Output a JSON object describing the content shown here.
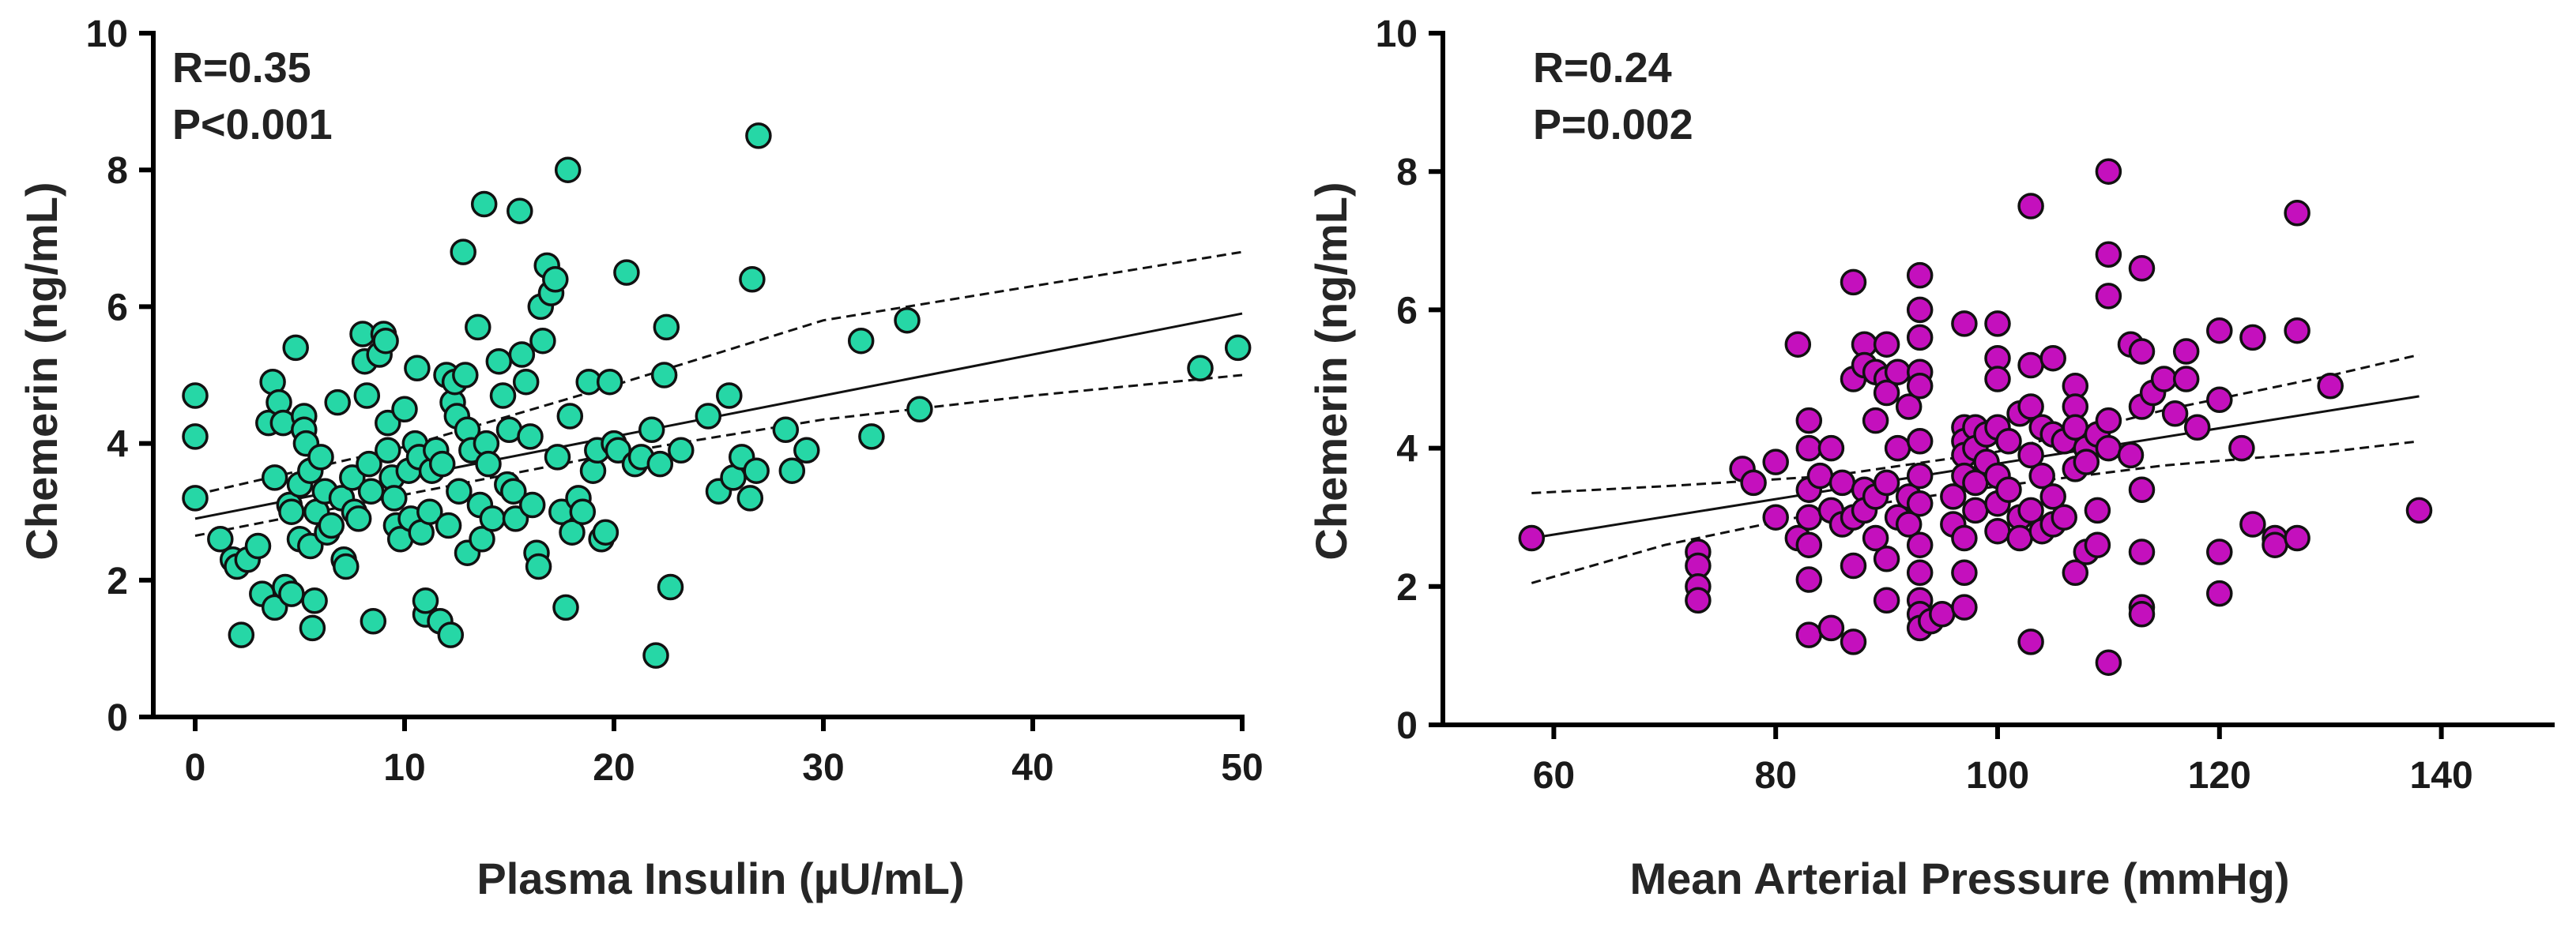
{
  "chart_data": [
    {
      "type": "scatter",
      "xlabel": "Plasma Insulin (µU/mL)",
      "ylabel": "Chemerin  (ng/mL)",
      "xlim": [
        -2,
        50
      ],
      "ylim": [
        0,
        10
      ],
      "xticks": [
        "0",
        "10",
        "20",
        "30",
        "40",
        "50"
      ],
      "xtick_values": [
        0,
        10,
        20,
        30,
        40,
        50
      ],
      "yticks": [
        "0",
        "2",
        "4",
        "6",
        "8",
        "10"
      ],
      "ytick_values": [
        0,
        2,
        4,
        6,
        8,
        10
      ],
      "stats": [
        "R=0.35",
        "P<0.001"
      ],
      "color": "#26d7a6",
      "fit": {
        "x": [
          0,
          50
        ],
        "y": [
          2.9,
          5.9
        ]
      },
      "ci_upper": [
        [
          0,
          3.25
        ],
        [
          10,
          3.95
        ],
        [
          20,
          4.85
        ],
        [
          30,
          5.8
        ],
        [
          40,
          6.3
        ],
        [
          50,
          6.8
        ]
      ],
      "ci_lower": [
        [
          0,
          2.65
        ],
        [
          10,
          3.25
        ],
        [
          20,
          3.85
        ],
        [
          30,
          4.35
        ],
        [
          40,
          4.7
        ],
        [
          50,
          5.0
        ]
      ],
      "points": [
        [
          0,
          4.7
        ],
        [
          0,
          4.1
        ],
        [
          0,
          3.2
        ],
        [
          1.2,
          2.6
        ],
        [
          1.8,
          2.3
        ],
        [
          2,
          2.2
        ],
        [
          2.2,
          1.2
        ],
        [
          2.5,
          2.3
        ],
        [
          3,
          2.5
        ],
        [
          3.2,
          1.8
        ],
        [
          3.5,
          4.3
        ],
        [
          3.7,
          4.9
        ],
        [
          3.8,
          3.5
        ],
        [
          3.8,
          1.6
        ],
        [
          4,
          4.6
        ],
        [
          4.2,
          4.3
        ],
        [
          4.3,
          1.9
        ],
        [
          4.5,
          3.1
        ],
        [
          4.6,
          3.0
        ],
        [
          4.6,
          1.8
        ],
        [
          4.8,
          5.4
        ],
        [
          5,
          3.4
        ],
        [
          5,
          2.6
        ],
        [
          5.2,
          4.4
        ],
        [
          5.2,
          4.2
        ],
        [
          5.3,
          4.0
        ],
        [
          5.5,
          3.6
        ],
        [
          5.5,
          2.5
        ],
        [
          5.6,
          1.3
        ],
        [
          5.7,
          1.7
        ],
        [
          5.8,
          3.0
        ],
        [
          6,
          3.8
        ],
        [
          6.2,
          3.3
        ],
        [
          6.3,
          2.7
        ],
        [
          6.5,
          2.8
        ],
        [
          6.8,
          4.6
        ],
        [
          7,
          3.2
        ],
        [
          7.1,
          2.3
        ],
        [
          7.2,
          2.2
        ],
        [
          7.5,
          3.5
        ],
        [
          7.6,
          3.0
        ],
        [
          7.8,
          2.9
        ],
        [
          8,
          5.6
        ],
        [
          8.1,
          5.2
        ],
        [
          8.2,
          4.7
        ],
        [
          8.3,
          3.7
        ],
        [
          8.4,
          3.3
        ],
        [
          8.5,
          1.4
        ],
        [
          8.8,
          5.3
        ],
        [
          9,
          5.6
        ],
        [
          9.1,
          5.5
        ],
        [
          9.2,
          4.3
        ],
        [
          9.2,
          3.9
        ],
        [
          9.4,
          3.5
        ],
        [
          9.5,
          3.2
        ],
        [
          9.6,
          2.8
        ],
        [
          9.8,
          2.6
        ],
        [
          10,
          4.5
        ],
        [
          10.2,
          3.6
        ],
        [
          10.3,
          2.9
        ],
        [
          10.5,
          4.0
        ],
        [
          10.6,
          5.1
        ],
        [
          10.7,
          3.8
        ],
        [
          10.8,
          2.7
        ],
        [
          11,
          1.5
        ],
        [
          11,
          1.7
        ],
        [
          11.2,
          3.0
        ],
        [
          11.3,
          3.6
        ],
        [
          11.5,
          3.9
        ],
        [
          11.7,
          1.4
        ],
        [
          11.8,
          3.7
        ],
        [
          12,
          5.0
        ],
        [
          12.1,
          2.8
        ],
        [
          12.2,
          1.2
        ],
        [
          12.3,
          4.6
        ],
        [
          12.4,
          4.9
        ],
        [
          12.5,
          4.4
        ],
        [
          12.6,
          3.3
        ],
        [
          12.8,
          6.8
        ],
        [
          12.9,
          5.0
        ],
        [
          13,
          4.2
        ],
        [
          13,
          2.4
        ],
        [
          13.2,
          3.9
        ],
        [
          13.5,
          5.7
        ],
        [
          13.6,
          3.1
        ],
        [
          13.7,
          2.6
        ],
        [
          13.8,
          7.5
        ],
        [
          13.9,
          4.0
        ],
        [
          14,
          3.7
        ],
        [
          14.2,
          2.9
        ],
        [
          14.5,
          5.2
        ],
        [
          14.7,
          4.7
        ],
        [
          14.9,
          3.4
        ],
        [
          15,
          4.2
        ],
        [
          15.2,
          3.3
        ],
        [
          15.3,
          2.9
        ],
        [
          15.5,
          7.4
        ],
        [
          15.6,
          5.3
        ],
        [
          15.8,
          4.9
        ],
        [
          16,
          4.1
        ],
        [
          16.1,
          3.1
        ],
        [
          16.3,
          2.4
        ],
        [
          16.4,
          2.2
        ],
        [
          16.5,
          6.0
        ],
        [
          16.6,
          5.5
        ],
        [
          16.8,
          6.6
        ],
        [
          17,
          6.2
        ],
        [
          17.2,
          6.4
        ],
        [
          17.3,
          3.8
        ],
        [
          17.5,
          3.0
        ],
        [
          17.7,
          1.6
        ],
        [
          17.8,
          8.0
        ],
        [
          17.9,
          4.4
        ],
        [
          18,
          2.7
        ],
        [
          18.3,
          3.2
        ],
        [
          18.5,
          3.0
        ],
        [
          18.8,
          4.9
        ],
        [
          19,
          3.6
        ],
        [
          19.2,
          3.9
        ],
        [
          19.4,
          2.6
        ],
        [
          19.6,
          2.7
        ],
        [
          19.8,
          4.9
        ],
        [
          20,
          4.0
        ],
        [
          20.2,
          3.9
        ],
        [
          20.6,
          6.5
        ],
        [
          21,
          3.7
        ],
        [
          21.3,
          3.8
        ],
        [
          21.8,
          4.2
        ],
        [
          22,
          0.9
        ],
        [
          22.2,
          3.7
        ],
        [
          22.4,
          5.0
        ],
        [
          22.5,
          5.7
        ],
        [
          22.7,
          1.9
        ],
        [
          23.2,
          3.9
        ],
        [
          24.5,
          4.4
        ],
        [
          25,
          3.3
        ],
        [
          25.5,
          4.7
        ],
        [
          25.7,
          3.5
        ],
        [
          26.1,
          3.8
        ],
        [
          26.5,
          3.2
        ],
        [
          26.6,
          6.4
        ],
        [
          26.8,
          3.6
        ],
        [
          26.9,
          8.5
        ],
        [
          28.2,
          4.2
        ],
        [
          28.5,
          3.6
        ],
        [
          29.2,
          3.9
        ],
        [
          31.8,
          5.5
        ],
        [
          32.3,
          4.1
        ],
        [
          34,
          5.8
        ],
        [
          34.6,
          4.5
        ],
        [
          48,
          5.1
        ],
        [
          49.8,
          5.4
        ]
      ]
    },
    {
      "type": "scatter",
      "xlabel": "Mean  Arterial Pressure (mmHg)",
      "ylabel": "Chemerin  (ng/mL)",
      "xlim": [
        50,
        150
      ],
      "ylim": [
        0,
        10
      ],
      "xticks": [
        "60",
        "80",
        "100",
        "120",
        "140"
      ],
      "xtick_values": [
        60,
        80,
        100,
        120,
        140
      ],
      "yticks": [
        "0",
        "2",
        "4",
        "6",
        "8",
        "10"
      ],
      "ytick_values": [
        0,
        2,
        4,
        6,
        8,
        10
      ],
      "stats": [
        "R=0.24",
        "P=0.002"
      ],
      "color": "#c410bd",
      "fit": {
        "x": [
          58,
          138
        ],
        "y": [
          2.7,
          4.75
        ]
      },
      "ci_upper": [
        [
          58,
          3.35
        ],
        [
          70,
          3.45
        ],
        [
          85,
          3.6
        ],
        [
          100,
          3.95
        ],
        [
          115,
          4.55
        ],
        [
          130,
          5.05
        ],
        [
          138,
          5.35
        ]
      ],
      "ci_lower": [
        [
          58,
          2.05
        ],
        [
          70,
          2.6
        ],
        [
          85,
          3.1
        ],
        [
          100,
          3.45
        ],
        [
          115,
          3.75
        ],
        [
          130,
          3.95
        ],
        [
          138,
          4.1
        ]
      ],
      "points": [
        [
          58,
          2.7
        ],
        [
          73,
          2.5
        ],
        [
          73,
          2.3
        ],
        [
          73,
          2.0
        ],
        [
          73,
          1.8
        ],
        [
          77,
          3.7
        ],
        [
          78,
          3.5
        ],
        [
          80,
          3.8
        ],
        [
          80,
          3.0
        ],
        [
          82,
          5.5
        ],
        [
          82,
          2.7
        ],
        [
          83,
          4.4
        ],
        [
          83,
          4.0
        ],
        [
          83,
          3.4
        ],
        [
          83,
          3.0
        ],
        [
          83,
          2.6
        ],
        [
          83,
          2.1
        ],
        [
          83,
          1.3
        ],
        [
          84,
          3.6
        ],
        [
          85,
          4.0
        ],
        [
          85,
          3.1
        ],
        [
          85,
          1.4
        ],
        [
          86,
          3.5
        ],
        [
          86,
          2.9
        ],
        [
          87,
          6.4
        ],
        [
          87,
          5.0
        ],
        [
          87,
          3.0
        ],
        [
          87,
          2.3
        ],
        [
          87,
          1.2
        ],
        [
          88,
          5.5
        ],
        [
          88,
          5.2
        ],
        [
          88,
          3.4
        ],
        [
          88,
          3.1
        ],
        [
          89,
          5.1
        ],
        [
          89,
          4.4
        ],
        [
          89,
          3.3
        ],
        [
          89,
          2.7
        ],
        [
          90,
          5.5
        ],
        [
          90,
          5.0
        ],
        [
          90,
          4.8
        ],
        [
          90,
          3.5
        ],
        [
          90,
          2.4
        ],
        [
          90,
          1.8
        ],
        [
          91,
          5.1
        ],
        [
          91,
          4.0
        ],
        [
          91,
          3.0
        ],
        [
          92,
          4.6
        ],
        [
          92,
          3.3
        ],
        [
          92,
          2.9
        ],
        [
          93,
          6.5
        ],
        [
          93,
          6.0
        ],
        [
          93,
          5.6
        ],
        [
          93,
          5.1
        ],
        [
          93,
          4.9
        ],
        [
          93,
          4.1
        ],
        [
          93,
          3.6
        ],
        [
          93,
          3.2
        ],
        [
          93,
          2.6
        ],
        [
          93,
          2.2
        ],
        [
          93,
          1.8
        ],
        [
          93,
          1.6
        ],
        [
          93,
          1.4
        ],
        [
          94,
          1.5
        ],
        [
          95,
          1.6
        ],
        [
          96,
          2.9
        ],
        [
          96,
          3.3
        ],
        [
          97,
          5.8
        ],
        [
          97,
          4.3
        ],
        [
          97,
          4.1
        ],
        [
          97,
          3.9
        ],
        [
          97,
          3.6
        ],
        [
          97,
          2.7
        ],
        [
          97,
          2.2
        ],
        [
          97,
          1.7
        ],
        [
          98,
          4.3
        ],
        [
          98,
          4.0
        ],
        [
          98,
          3.5
        ],
        [
          98,
          3.1
        ],
        [
          99,
          4.2
        ],
        [
          99,
          3.8
        ],
        [
          100,
          5.8
        ],
        [
          100,
          5.3
        ],
        [
          100,
          5.0
        ],
        [
          100,
          4.3
        ],
        [
          100,
          3.6
        ],
        [
          100,
          3.2
        ],
        [
          100,
          2.8
        ],
        [
          101,
          4.1
        ],
        [
          101,
          3.4
        ],
        [
          102,
          4.5
        ],
        [
          102,
          3.0
        ],
        [
          102,
          2.7
        ],
        [
          103,
          7.5
        ],
        [
          103,
          5.2
        ],
        [
          103,
          4.6
        ],
        [
          103,
          3.9
        ],
        [
          103,
          3.1
        ],
        [
          103,
          1.2
        ],
        [
          104,
          4.3
        ],
        [
          104,
          3.6
        ],
        [
          104,
          2.8
        ],
        [
          105,
          5.3
        ],
        [
          105,
          4.2
        ],
        [
          105,
          3.3
        ],
        [
          105,
          2.9
        ],
        [
          106,
          4.1
        ],
        [
          106,
          3.0
        ],
        [
          107,
          4.9
        ],
        [
          107,
          4.6
        ],
        [
          107,
          4.3
        ],
        [
          107,
          3.7
        ],
        [
          107,
          2.2
        ],
        [
          108,
          4.0
        ],
        [
          108,
          3.8
        ],
        [
          108,
          2.5
        ],
        [
          109,
          4.2
        ],
        [
          109,
          3.1
        ],
        [
          109,
          2.6
        ],
        [
          110,
          8.0
        ],
        [
          110,
          6.8
        ],
        [
          110,
          6.2
        ],
        [
          110,
          4.4
        ],
        [
          110,
          4.0
        ],
        [
          110,
          0.9
        ],
        [
          112,
          5.5
        ],
        [
          112,
          3.9
        ],
        [
          113,
          6.6
        ],
        [
          113,
          5.4
        ],
        [
          113,
          4.6
        ],
        [
          113,
          3.4
        ],
        [
          113,
          2.5
        ],
        [
          113,
          1.7
        ],
        [
          113,
          1.6
        ],
        [
          114,
          4.8
        ],
        [
          115,
          5.0
        ],
        [
          116,
          4.5
        ],
        [
          117,
          5.4
        ],
        [
          117,
          5.0
        ],
        [
          118,
          4.3
        ],
        [
          120,
          5.7
        ],
        [
          120,
          4.7
        ],
        [
          120,
          2.5
        ],
        [
          120,
          1.9
        ],
        [
          122,
          4.0
        ],
        [
          123,
          5.6
        ],
        [
          123,
          2.9
        ],
        [
          125,
          2.7
        ],
        [
          125,
          2.6
        ],
        [
          127,
          7.4
        ],
        [
          127,
          5.7
        ],
        [
          127,
          2.7
        ],
        [
          130,
          4.9
        ],
        [
          138,
          3.1
        ]
      ]
    }
  ]
}
